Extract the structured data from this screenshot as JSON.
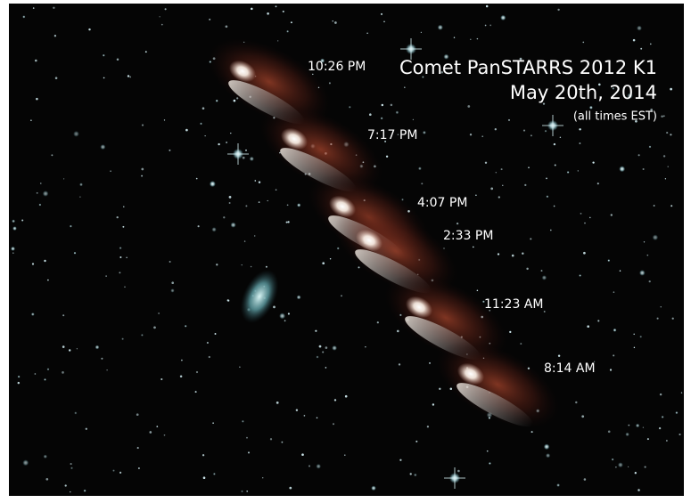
{
  "header": {
    "title": "Comet PanSTARRS 2012 K1",
    "date": "May 20th, 2014",
    "note": "(all times EST)"
  },
  "times": [
    "10:26 PM",
    "7:17 PM",
    "4:07 PM",
    "2:33 PM",
    "11:23 AM",
    "8:14 AM"
  ]
}
